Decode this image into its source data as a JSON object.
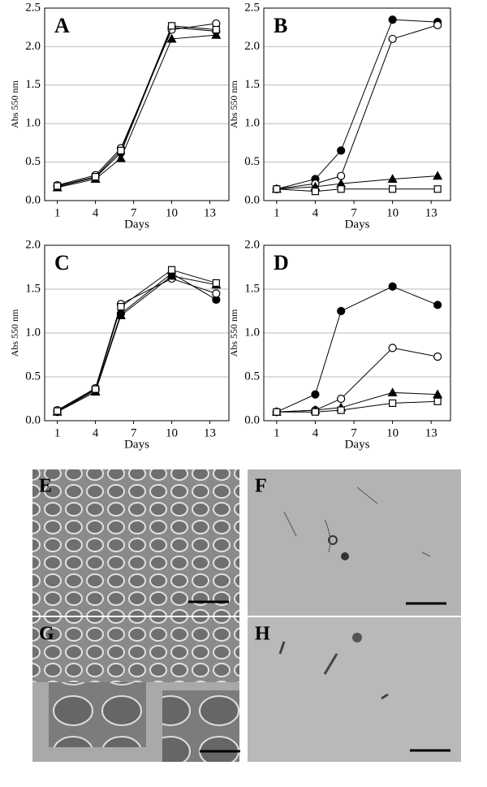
{
  "chart_data": [
    {
      "type": "line",
      "title": "A",
      "xlabel": "Days",
      "ylabel": "Abs 550 nm",
      "xlim": [
        0,
        14.5
      ],
      "xticks": [
        1,
        4,
        7,
        10,
        13
      ],
      "ylim": [
        0,
        2.5
      ],
      "yticks": [
        {
          "value": 0,
          "label": "0.0"
        },
        0.5,
        {
          "value": 1,
          "label": "1.0"
        },
        1.5,
        {
          "value": 2,
          "label": "2.0"
        },
        2.5
      ],
      "grid": true,
      "x": [
        1,
        4,
        6,
        10,
        13.5
      ],
      "series": [
        {
          "color": "#000",
          "marker": "circle",
          "filled": true,
          "values": [
            0.18,
            0.3,
            0.62,
            2.25,
            2.2
          ]
        },
        {
          "color": "#000",
          "marker": "circle",
          "filled": false,
          "values": [
            0.2,
            0.33,
            0.68,
            2.22,
            2.3
          ]
        },
        {
          "color": "#000",
          "marker": "triangle",
          "filled": true,
          "values": [
            0.17,
            0.28,
            0.55,
            2.1,
            2.15
          ]
        },
        {
          "color": "#000",
          "marker": "square",
          "filled": false,
          "values": [
            0.19,
            0.31,
            0.65,
            2.27,
            2.22
          ]
        }
      ]
    },
    {
      "type": "line",
      "title": "B",
      "xlabel": "Days",
      "ylabel": "Abs 550 nm",
      "xlim": [
        0,
        14.5
      ],
      "xticks": [
        1,
        4,
        7,
        10,
        13
      ],
      "ylim": [
        0,
        2.5
      ],
      "yticks": [
        {
          "value": 0,
          "label": "0.0"
        },
        0.5,
        {
          "value": 1,
          "label": "1.0"
        },
        1.5,
        {
          "value": 2,
          "label": "2.0"
        },
        2.5
      ],
      "grid": true,
      "x": [
        1,
        4,
        6,
        10,
        13.5
      ],
      "series": [
        {
          "color": "#000",
          "marker": "circle",
          "filled": true,
          "values": [
            0.15,
            0.28,
            0.65,
            2.35,
            2.32
          ]
        },
        {
          "color": "#000",
          "marker": "circle",
          "filled": false,
          "values": [
            0.15,
            0.22,
            0.32,
            2.1,
            2.28
          ]
        },
        {
          "color": "#000",
          "marker": "triangle",
          "filled": true,
          "values": [
            0.15,
            0.18,
            0.22,
            0.28,
            0.32
          ]
        },
        {
          "color": "#000",
          "marker": "square",
          "filled": false,
          "values": [
            0.15,
            0.12,
            0.15,
            0.15,
            0.15
          ]
        }
      ]
    },
    {
      "type": "line",
      "title": "C",
      "xlabel": "Days",
      "ylabel": "Abs 550 nm",
      "xlim": [
        0,
        14.5
      ],
      "xticks": [
        1,
        4,
        7,
        10,
        13
      ],
      "ylim": [
        0,
        2
      ],
      "yticks": [
        {
          "value": 0,
          "label": "0.0"
        },
        0.5,
        {
          "value": 1,
          "label": "1.0"
        },
        1.5,
        {
          "value": 2,
          "label": "2.0"
        }
      ],
      "grid": true,
      "x": [
        1,
        4,
        6,
        10,
        13.5
      ],
      "series": [
        {
          "color": "#000",
          "marker": "circle",
          "filled": true,
          "values": [
            0.1,
            0.35,
            1.22,
            1.68,
            1.38
          ]
        },
        {
          "color": "#000",
          "marker": "circle",
          "filled": false,
          "values": [
            0.12,
            0.37,
            1.33,
            1.62,
            1.45
          ]
        },
        {
          "color": "#000",
          "marker": "triangle",
          "filled": true,
          "values": [
            0.1,
            0.33,
            1.2,
            1.65,
            1.55
          ]
        },
        {
          "color": "#000",
          "marker": "square",
          "filled": false,
          "values": [
            0.11,
            0.36,
            1.3,
            1.72,
            1.57
          ]
        }
      ]
    },
    {
      "type": "line",
      "title": "D",
      "xlabel": "Days",
      "ylabel": "Abs 550 nm",
      "xlim": [
        0,
        14.5
      ],
      "xticks": [
        1,
        4,
        7,
        10,
        13
      ],
      "ylim": [
        0,
        2
      ],
      "yticks": [
        {
          "value": 0,
          "label": "0.0"
        },
        0.5,
        {
          "value": 1,
          "label": "1.0"
        },
        1.5,
        {
          "value": 2,
          "label": "2.0"
        }
      ],
      "grid": true,
      "x": [
        1,
        4,
        6,
        10,
        13.5
      ],
      "series": [
        {
          "color": "#000",
          "marker": "circle",
          "filled": true,
          "values": [
            0.1,
            0.3,
            1.25,
            1.53,
            1.32
          ]
        },
        {
          "color": "#000",
          "marker": "circle",
          "filled": false,
          "values": [
            0.1,
            0.12,
            0.25,
            0.83,
            0.73
          ]
        },
        {
          "color": "#000",
          "marker": "triangle",
          "filled": true,
          "values": [
            0.1,
            0.12,
            0.15,
            0.32,
            0.3
          ]
        },
        {
          "color": "#000",
          "marker": "square",
          "filled": false,
          "values": [
            0.1,
            0.1,
            0.12,
            0.2,
            0.22
          ]
        }
      ]
    }
  ],
  "panels": [
    {
      "label": "E"
    },
    {
      "label": "F"
    },
    {
      "label": "G"
    },
    {
      "label": "H"
    }
  ]
}
